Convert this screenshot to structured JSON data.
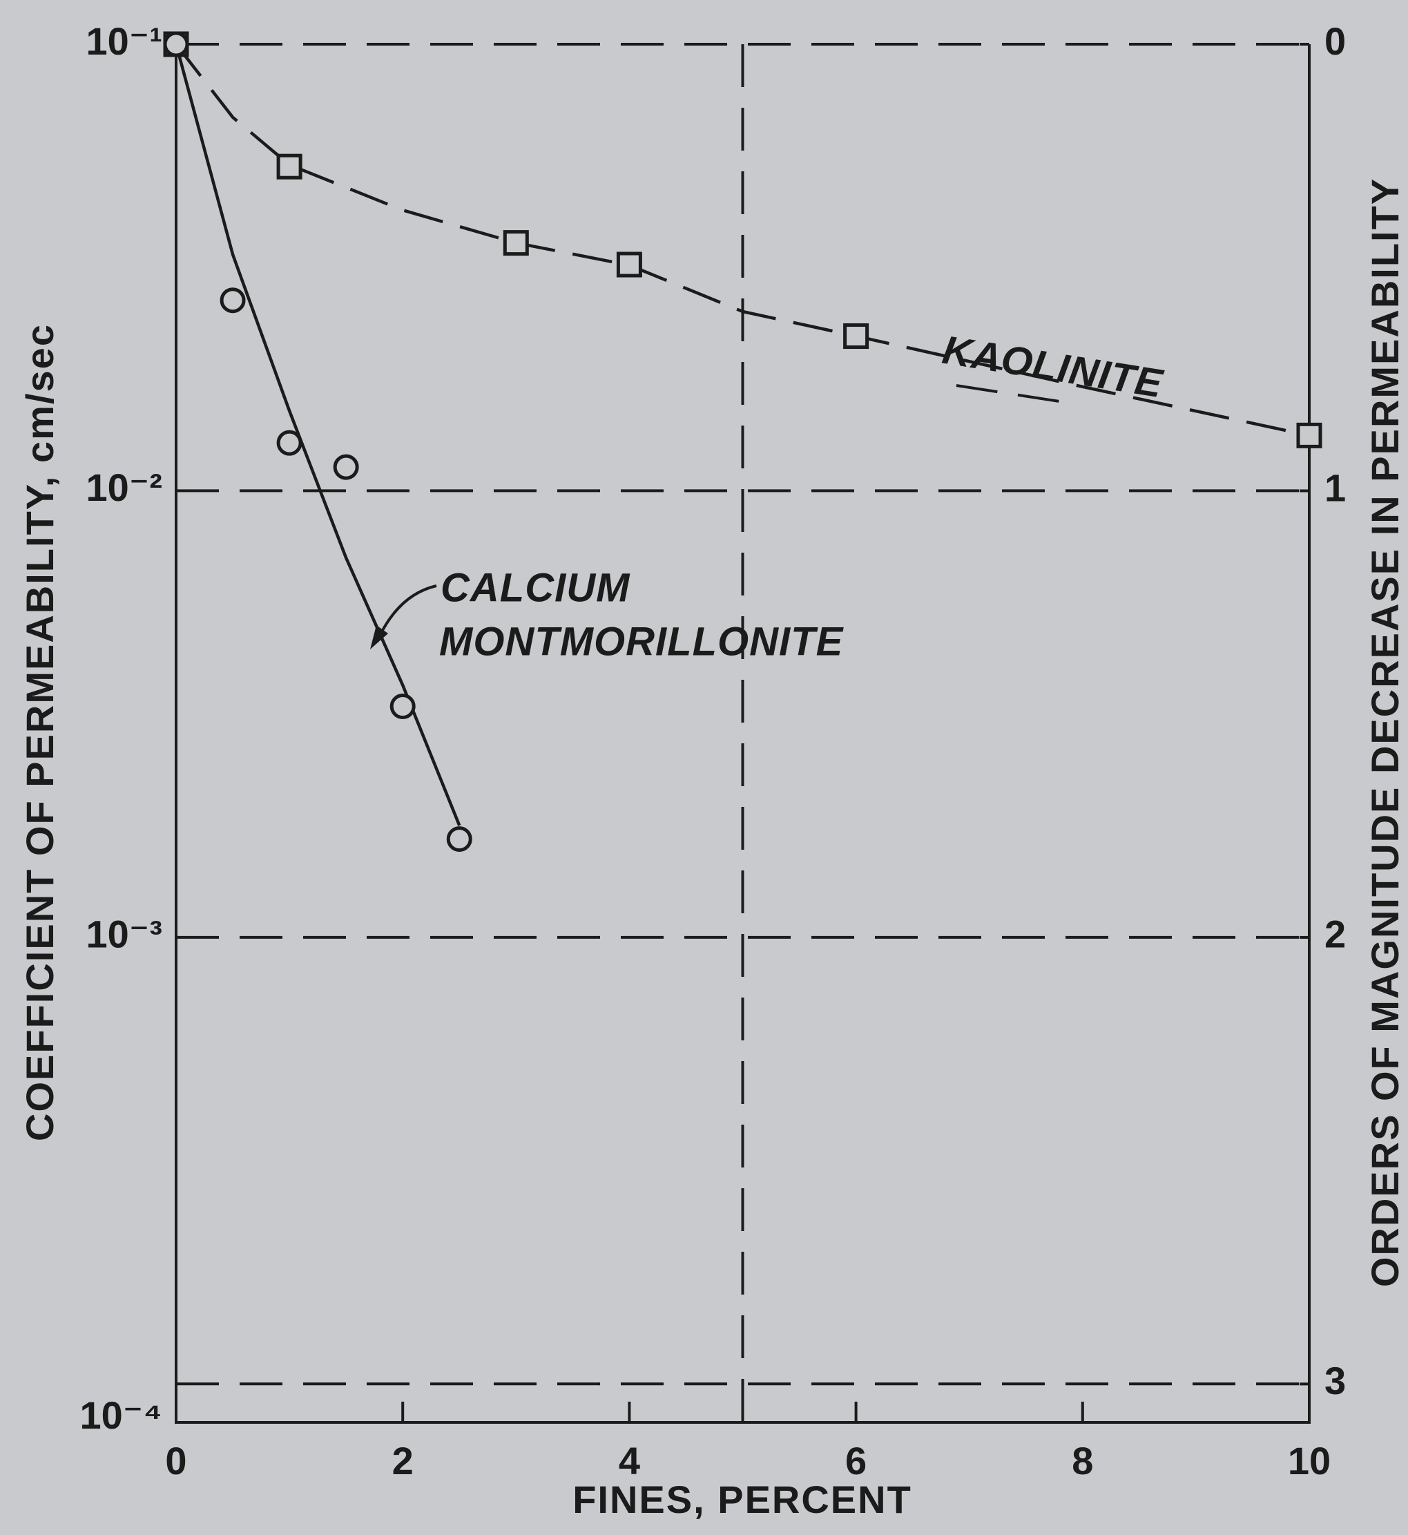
{
  "chart_data": {
    "type": "line",
    "x_label": "FINES, PERCENT",
    "y_label": "COEFFICIENT OF PERMEABILITY, cm/sec",
    "y2_label": "ORDERS OF MAGNITUDE DECREASE IN PERMEABILITY",
    "xlim": [
      0,
      10
    ],
    "xticks": [
      0,
      2,
      4,
      6,
      8,
      10
    ],
    "ylim": [
      8.2e-05,
      0.1
    ],
    "log_y": true,
    "yticks": [
      {
        "value": 0.1,
        "label": "10⁻¹"
      },
      {
        "value": 0.01,
        "label": "10⁻²"
      },
      {
        "value": 0.001,
        "label": "10⁻³"
      },
      {
        "value": 0.0001,
        "label": "10⁻⁴"
      }
    ],
    "y2lim": [
      3.086,
      0
    ],
    "y2ticks": [
      0,
      1,
      2,
      3
    ],
    "grid": true,
    "x_reference_lines": [
      5
    ],
    "color": "#1b1b1b",
    "series": [
      {
        "name": "KAOLINITE",
        "marker": "square",
        "line_style": "dashed",
        "x": [
          0,
          1,
          3,
          4,
          6,
          10
        ],
        "values": [
          0.1,
          0.0532,
          0.0359,
          0.0321,
          0.0222,
          0.0133
        ],
        "curve_x": [
          0,
          0.5,
          1,
          2,
          3,
          4,
          5,
          6,
          8,
          10
        ],
        "curve_values": [
          0.1,
          0.0686,
          0.0537,
          0.0425,
          0.0359,
          0.032,
          0.0252,
          0.0222,
          0.0171,
          0.0133
        ]
      },
      {
        "name_lines": [
          "CALCIUM",
          "MONTMORILLONITE"
        ],
        "marker": "circle",
        "line_style": "solid",
        "x": [
          0,
          0.5,
          1,
          1.5,
          2,
          2.5
        ],
        "values": [
          0.1,
          0.0267,
          0.0128,
          0.0113,
          0.00329,
          0.00166
        ],
        "curve_x": [
          0,
          0.5,
          1,
          1.5,
          2,
          2.5
        ],
        "curve_values": [
          0.1,
          0.0338,
          0.0151,
          0.00708,
          0.00367,
          0.00178
        ]
      }
    ]
  }
}
